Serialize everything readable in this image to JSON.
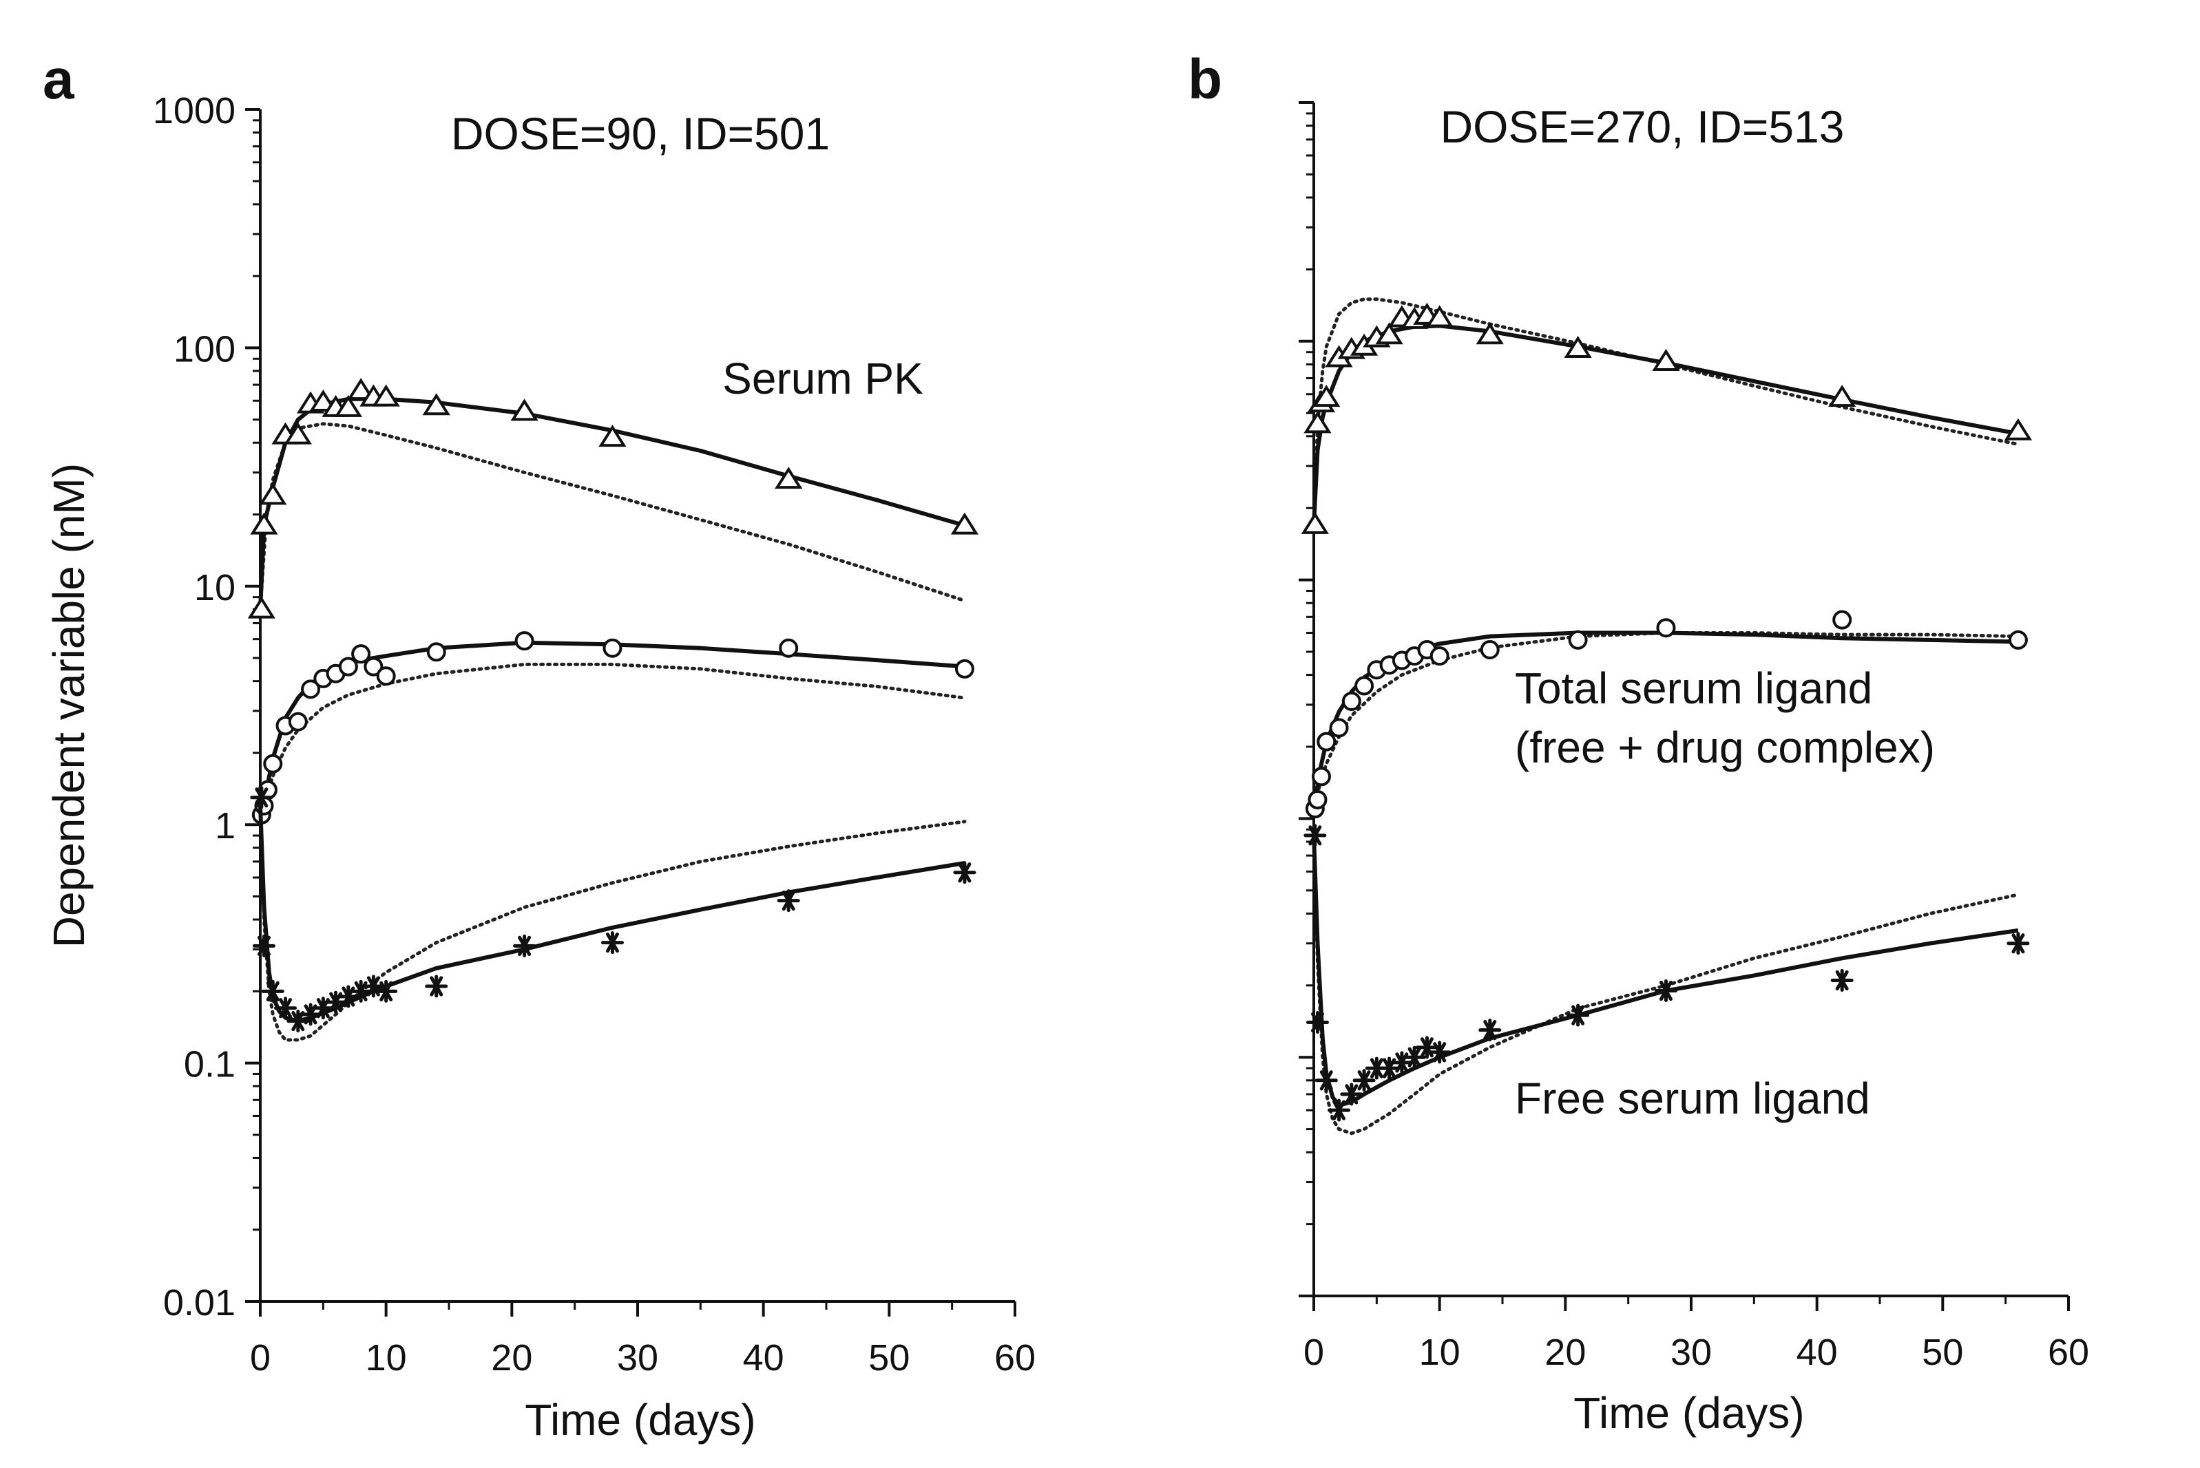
{
  "chart_data": [
    {
      "panel_label": "a",
      "type": "scatter",
      "title": "DOSE=90, ID=501",
      "xlabel": "Time (days)",
      "ylabel": "Dependent variable (nM)",
      "xlim": [
        0,
        60
      ],
      "ylim": [
        0.01,
        1000
      ],
      "yscale": "log",
      "x_ticks": [
        0,
        10,
        20,
        30,
        40,
        50,
        60
      ],
      "x_tick_labels": [
        "0",
        "10",
        "20",
        "30",
        "40",
        "50",
        "60"
      ],
      "y_ticks": [
        0.01,
        0.1,
        1,
        10,
        100,
        1000
      ],
      "y_tick_labels": [
        "0.01",
        "0.1",
        "1",
        "10",
        "100",
        "1000"
      ],
      "show_y_tick_labels": true,
      "grid": false,
      "annotations": [
        {
          "text": "Serum PK",
          "x": 44,
          "y": 45
        }
      ],
      "series": [
        {
          "marker": "triangle",
          "observed": {
            "x": [
              0.1,
              0.3,
              1,
              2,
              3,
              4,
              5,
              6,
              7,
              8,
              9,
              10,
              14,
              21,
              28,
              42,
              56
            ],
            "y": [
              8,
              18,
              24,
              43,
              43,
              58,
              59,
              56,
              56,
              66,
              62,
              62,
              57,
              54,
              42,
              28,
              18
            ]
          },
          "fit_solid": {
            "x": [
              0,
              0.3,
              1,
              2,
              3,
              4,
              5,
              7,
              10,
              14,
              21,
              28,
              35,
              42,
              49,
              56
            ],
            "y": [
              8,
              18,
              26,
              40,
              50,
              55,
              58,
              61,
              61,
              59,
              53,
              45,
              37,
              29,
              23,
              18
            ]
          },
          "fit_dotted": {
            "x": [
              0,
              0.5,
              1,
              2,
              3,
              5,
              7,
              10,
              14,
              21,
              28,
              35,
              42,
              49,
              56
            ],
            "y": [
              8,
              20,
              28,
              40,
              46,
              48,
              47,
              43,
              38,
              30,
              24,
              19,
              15,
              11.5,
              8.7
            ]
          }
        },
        {
          "marker": "circle",
          "observed": {
            "x": [
              0.1,
              0.3,
              0.6,
              1,
              2,
              3,
              4,
              5,
              6,
              7,
              8,
              9,
              10,
              14,
              21,
              28,
              42,
              56
            ],
            "y": [
              1.1,
              1.2,
              1.4,
              1.8,
              2.6,
              2.7,
              3.7,
              4.1,
              4.3,
              4.6,
              5.2,
              4.6,
              4.2,
              5.3,
              5.9,
              5.5,
              5.5,
              4.5
            ]
          },
          "fit_solid": {
            "x": [
              0,
              0.5,
              1,
              2,
              3,
              4,
              6,
              8,
              10,
              14,
              21,
              28,
              35,
              42,
              49,
              56
            ],
            "y": [
              1.1,
              1.4,
              1.9,
              2.8,
              3.4,
              3.9,
              4.5,
              4.9,
              5.1,
              5.5,
              5.8,
              5.7,
              5.5,
              5.2,
              4.9,
              4.6
            ]
          },
          "fit_dotted": {
            "x": [
              0,
              0.5,
              1,
              2,
              3,
              5,
              7,
              10,
              14,
              21,
              28,
              35,
              42,
              49,
              56
            ],
            "y": [
              1.1,
              1.3,
              1.6,
              2.1,
              2.5,
              3.1,
              3.5,
              3.9,
              4.3,
              4.7,
              4.7,
              4.5,
              4.1,
              3.8,
              3.4
            ]
          }
        },
        {
          "marker": "asterisk",
          "observed": {
            "x": [
              0.1,
              0.3,
              1,
              2,
              3,
              4,
              5,
              6,
              7,
              8,
              9,
              10,
              14,
              21,
              28,
              42,
              56
            ],
            "y": [
              1.3,
              0.31,
              0.2,
              0.17,
              0.15,
              0.16,
              0.17,
              0.18,
              0.19,
              0.2,
              0.21,
              0.2,
              0.21,
              0.31,
              0.32,
              0.48,
              0.63
            ]
          },
          "fit_solid": {
            "x": [
              0,
              0.3,
              0.7,
              1,
              1.5,
              2,
              3,
              4,
              6,
              8,
              10,
              14,
              21,
              28,
              35,
              42,
              49,
              56
            ],
            "y": [
              1.2,
              0.45,
              0.24,
              0.19,
              0.165,
              0.155,
              0.15,
              0.155,
              0.17,
              0.19,
              0.21,
              0.25,
              0.3,
              0.37,
              0.44,
              0.52,
              0.6,
              0.69
            ]
          },
          "fit_dotted": {
            "x": [
              0,
              0.3,
              0.7,
              1,
              1.5,
              2,
              3,
              4,
              6,
              8,
              10,
              14,
              21,
              28,
              35,
              42,
              49,
              56
            ],
            "y": [
              1.2,
              0.4,
              0.2,
              0.16,
              0.135,
              0.125,
              0.125,
              0.13,
              0.16,
              0.2,
              0.24,
              0.32,
              0.45,
              0.57,
              0.7,
              0.81,
              0.92,
              1.03
            ]
          }
        }
      ]
    },
    {
      "panel_label": "b",
      "type": "scatter",
      "title": "DOSE=270, ID=513",
      "xlabel": "Time (days)",
      "ylabel": "",
      "xlim": [
        0,
        60
      ],
      "ylim": [
        0.01,
        1000
      ],
      "yscale": "log",
      "x_ticks": [
        0,
        10,
        20,
        30,
        40,
        50,
        60
      ],
      "x_tick_labels": [
        "0",
        "10",
        "20",
        "30",
        "40",
        "50",
        "60"
      ],
      "y_ticks": [
        0.01,
        0.1,
        1,
        10,
        100,
        1000
      ],
      "y_tick_labels": [
        "",
        "",
        "",
        "",
        "",
        ""
      ],
      "show_y_tick_labels": false,
      "grid": false,
      "annotations": [
        {
          "text": "Total serum ligand",
          "x": 16,
          "y": 3.2
        },
        {
          "text": "(free + drug complex)",
          "x": 16,
          "y": 1.8
        },
        {
          "text": "Free serum ligand",
          "x": 16,
          "y": 0.06
        }
      ],
      "series": [
        {
          "marker": "triangle",
          "observed": {
            "x": [
              0.1,
              0.3,
              0.6,
              1,
              2,
              3,
              4,
              5,
              6,
              7,
              8,
              9,
              10,
              14,
              21,
              28,
              42,
              56
            ],
            "y": [
              17,
              45,
              55,
              58,
              85,
              92,
              95,
              103,
              106,
              125,
              123,
              128,
              125,
              106,
              93,
              82,
              58,
              42
            ]
          },
          "fit_solid": {
            "x": [
              0,
              0.3,
              0.7,
              1,
              2,
              3,
              4,
              6,
              8,
              10,
              14,
              21,
              28,
              35,
              42,
              49,
              56
            ],
            "y": [
              17,
              35,
              48,
              55,
              75,
              90,
              100,
              110,
              115,
              116,
              110,
              95,
              81,
              68,
              57,
              48,
              41
            ]
          },
          "fit_dotted": {
            "x": [
              0,
              0.3,
              0.7,
              1,
              2,
              3,
              4,
              5,
              7,
              10,
              14,
              21,
              28,
              35,
              42,
              49,
              56
            ],
            "y": [
              17,
              45,
              75,
              95,
              130,
              145,
              150,
              150,
              145,
              133,
              118,
              98,
              80,
              65,
              53,
              44,
              37
            ]
          }
        },
        {
          "marker": "circle",
          "observed": {
            "x": [
              0.1,
              0.3,
              0.6,
              1,
              2,
              3,
              4,
              5,
              6,
              7,
              8,
              9,
              10,
              14,
              21,
              28,
              42,
              56
            ],
            "y": [
              1.1,
              1.2,
              1.5,
              2.1,
              2.4,
              3.1,
              3.6,
              4.2,
              4.4,
              4.6,
              4.8,
              5.1,
              4.8,
              5.1,
              5.6,
              6.3,
              6.8,
              5.6
            ]
          },
          "fit_solid": {
            "x": [
              0,
              0.5,
              1,
              2,
              3,
              4,
              6,
              8,
              10,
              14,
              21,
              28,
              35,
              42,
              49,
              56
            ],
            "y": [
              1.1,
              1.6,
              2.1,
              2.8,
              3.4,
              3.9,
              4.6,
              5.1,
              5.4,
              5.8,
              6.0,
              6.0,
              5.9,
              5.7,
              5.6,
              5.5
            ]
          },
          "fit_dotted": {
            "x": [
              0,
              0.5,
              1,
              2,
              3,
              5,
              7,
              10,
              14,
              21,
              28,
              35,
              42,
              49,
              56
            ],
            "y": [
              1.1,
              1.4,
              1.7,
              2.2,
              2.7,
              3.4,
              4.0,
              4.6,
              5.2,
              5.8,
              6.0,
              6.0,
              5.9,
              5.9,
              5.8
            ]
          }
        },
        {
          "marker": "asterisk",
          "observed": {
            "x": [
              0.1,
              0.3,
              1,
              2,
              3,
              4,
              5,
              6,
              7,
              8,
              9,
              10,
              14,
              21,
              28,
              42,
              56
            ],
            "y": [
              0.85,
              0.14,
              0.08,
              0.06,
              0.07,
              0.08,
              0.09,
              0.09,
              0.095,
              0.1,
              0.11,
              0.105,
              0.13,
              0.15,
              0.19,
              0.21,
              0.3
            ]
          },
          "fit_solid": {
            "x": [
              0,
              0.3,
              0.7,
              1,
              1.5,
              2,
              3,
              4,
              6,
              8,
              10,
              14,
              21,
              28,
              35,
              42,
              49,
              56
            ],
            "y": [
              0.85,
              0.3,
              0.12,
              0.085,
              0.068,
              0.063,
              0.065,
              0.07,
              0.08,
              0.09,
              0.1,
              0.12,
              0.15,
              0.19,
              0.22,
              0.26,
              0.3,
              0.34
            ]
          },
          "fit_dotted": {
            "x": [
              0,
              0.3,
              0.7,
              1,
              1.5,
              2,
              3,
              4,
              6,
              8,
              10,
              14,
              21,
              28,
              35,
              42,
              49,
              56
            ],
            "y": [
              0.85,
              0.25,
              0.1,
              0.07,
              0.055,
              0.05,
              0.048,
              0.05,
              0.058,
              0.07,
              0.085,
              0.11,
              0.16,
              0.2,
              0.26,
              0.32,
              0.4,
              0.48
            ]
          }
        }
      ]
    }
  ]
}
